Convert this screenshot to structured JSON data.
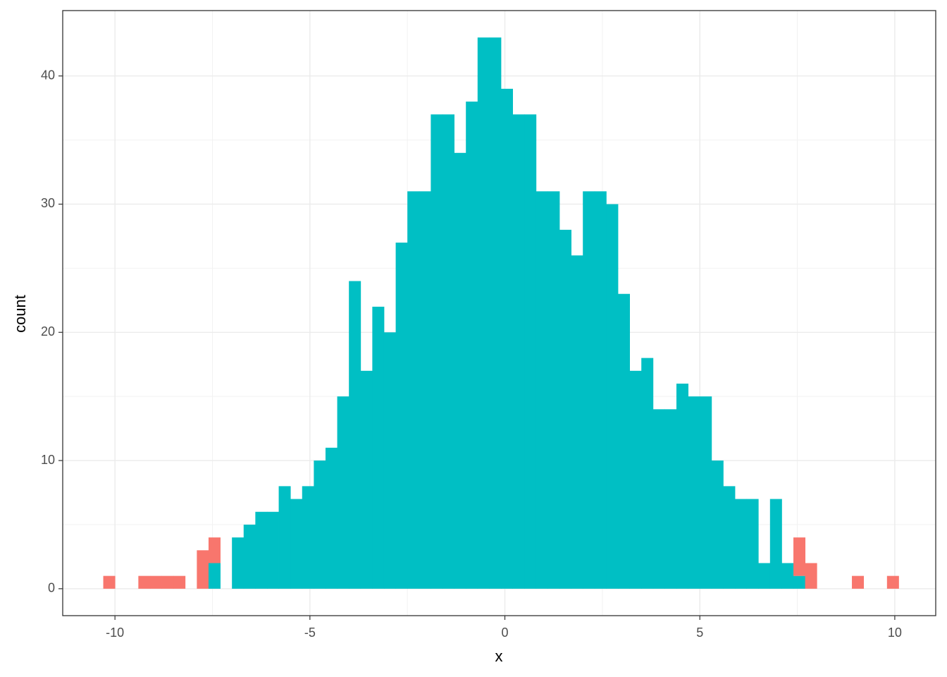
{
  "chart_data": {
    "type": "histogram",
    "x_label": "x",
    "y_label": "count",
    "bins": [
      -10.3,
      -10,
      -9.7,
      -9.4,
      -9.1,
      -8.8,
      -8.5,
      -8.2,
      -7.9,
      -7.6,
      -7.3,
      -7,
      -6.7,
      -6.4,
      -6.1,
      -5.8,
      -5.5,
      -5.2,
      -4.9,
      -4.6,
      -4.3,
      -4,
      -3.7,
      -3.4,
      -3.1,
      -2.8,
      -2.5,
      -2.2,
      -1.9,
      -1.6,
      -1.3,
      -1,
      -0.7,
      -0.4,
      -0.1,
      0.2,
      0.5,
      0.8,
      1.1,
      1.4,
      1.7,
      2,
      2.3,
      2.6,
      2.9,
      3.2,
      3.5,
      3.8,
      4.1,
      4.4,
      4.7,
      5,
      5.3,
      5.6,
      5.9,
      6.2,
      6.5,
      6.8,
      7.1,
      7.4,
      7.7,
      8,
      8.3,
      8.6,
      8.9,
      9.2,
      9.5,
      9.8,
      10.1
    ],
    "series": [
      {
        "color": "#00BFC4",
        "values": [
          0,
          0,
          0,
          0,
          0,
          0,
          0,
          0,
          0,
          2,
          0,
          4,
          5,
          6,
          6,
          8,
          7,
          8,
          10,
          11,
          15,
          24,
          17,
          22,
          20,
          27,
          31,
          31,
          37,
          37,
          34,
          38,
          43,
          43,
          39,
          37,
          37,
          31,
          31,
          28,
          26,
          31,
          31,
          30,
          23,
          17,
          18,
          14,
          14,
          16,
          15,
          15,
          10,
          8,
          7,
          7,
          2,
          7,
          2,
          1,
          0,
          0,
          0,
          0,
          0,
          0,
          0,
          0
        ]
      },
      {
        "color": "#F8766D",
        "values": [
          1,
          0,
          0,
          1,
          1,
          1,
          1,
          0,
          3,
          2,
          0,
          0,
          0,
          0,
          0,
          0,
          0,
          0,
          0,
          0,
          0,
          0,
          0,
          0,
          0,
          0,
          0,
          0,
          0,
          0,
          0,
          0,
          0,
          0,
          0,
          0,
          0,
          0,
          0,
          0,
          0,
          0,
          0,
          0,
          0,
          0,
          0,
          0,
          0,
          0,
          0,
          0,
          0,
          0,
          0,
          0,
          0,
          0,
          0,
          3,
          2,
          0,
          0,
          0,
          1,
          0,
          0,
          1
        ]
      }
    ],
    "stacked": true,
    "xlim": [
      -11.34,
      11.05
    ],
    "ylim": [
      -2.1,
      45.1
    ],
    "xticks": [
      -10,
      -5,
      0,
      5,
      10
    ],
    "yticks": [
      0,
      10,
      20,
      30,
      40
    ],
    "grid": true
  }
}
